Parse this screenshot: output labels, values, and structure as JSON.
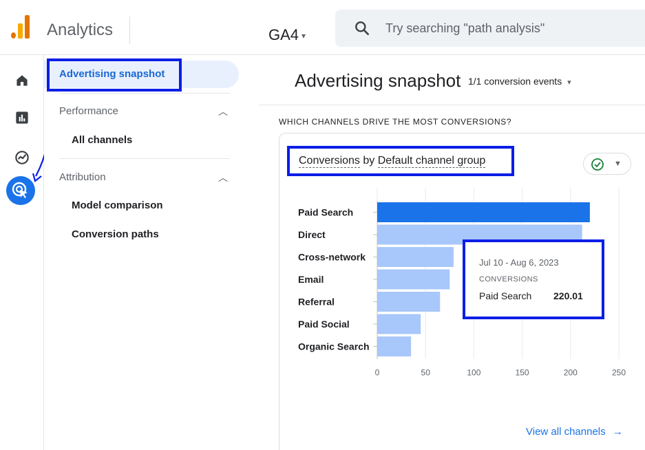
{
  "app": {
    "title": "Analytics",
    "property": "GA4"
  },
  "search": {
    "placeholder": "Try searching \"path analysis\""
  },
  "rail": {
    "icons": [
      "home-icon",
      "reports-icon",
      "explore-icon",
      "advertising-icon"
    ],
    "active": "advertising-icon"
  },
  "nav": {
    "selected": "Advertising snapshot",
    "sections": [
      {
        "label": "Performance",
        "items": [
          "All channels"
        ]
      },
      {
        "label": "Attribution",
        "items": [
          "Model comparison",
          "Conversion paths"
        ]
      }
    ]
  },
  "main": {
    "title": "Advertising snapshot",
    "conversion_events": "1/1 conversion events",
    "section_question": "WHICH CHANNELS DRIVE THE MOST CONVERSIONS?",
    "card_title_metric": "Conversions",
    "card_title_by": "by",
    "card_title_dim": "Default channel group",
    "view_all": "View all channels"
  },
  "tooltip": {
    "date_range": "Jul 10 - Aug 6, 2023",
    "metric": "CONVERSIONS",
    "channel": "Paid Search",
    "value": "220.01"
  },
  "colors": {
    "accent": "#1a73e8",
    "highlight_box": "#0a1ee6",
    "bar_primary": "#1a73e8",
    "bar_secondary": "#a8c7fa"
  },
  "chart_data": {
    "type": "bar",
    "orientation": "horizontal",
    "categories": [
      "Paid Search",
      "Direct",
      "Cross-network",
      "Email",
      "Referral",
      "Paid Social",
      "Organic Search"
    ],
    "values": [
      220.01,
      212,
      79,
      75,
      65,
      45,
      35
    ],
    "xticks": [
      "0",
      "50",
      "100",
      "150",
      "200",
      "250"
    ],
    "xlim": [
      0,
      250
    ],
    "grid": true,
    "highlighted": "Paid Search"
  }
}
